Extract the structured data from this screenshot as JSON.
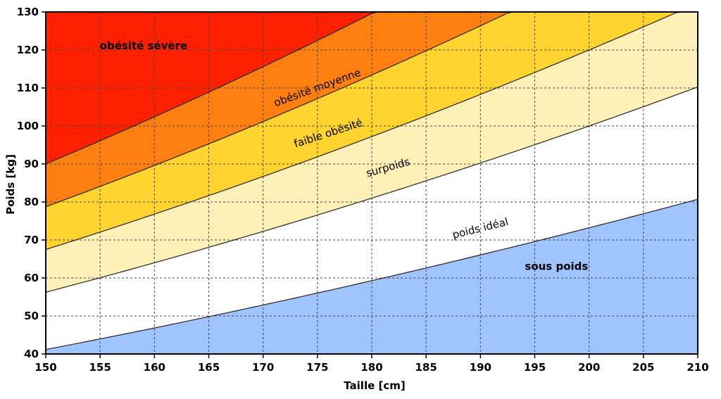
{
  "chart_data": {
    "type": "area",
    "title": "",
    "xlabel": "Taille [cm]",
    "ylabel": "Poids [kg]",
    "xlim": [
      150,
      210
    ],
    "ylim": [
      40,
      130
    ],
    "x_ticks": [
      150,
      155,
      160,
      165,
      170,
      175,
      180,
      185,
      190,
      195,
      200,
      205,
      210
    ],
    "y_ticks": [
      40,
      50,
      60,
      70,
      80,
      90,
      100,
      110,
      120,
      130
    ],
    "grid": true,
    "curve_type": "bmi",
    "boundaries_bmi": [
      18.3,
      25,
      30,
      35,
      40
    ],
    "zones": [
      {
        "name": "sous poids",
        "color": "#a0c4ff",
        "bmi_range": [
          0,
          18.3
        ],
        "label_at": [
          197,
          63
        ],
        "angle": 0,
        "bold": true
      },
      {
        "name": "poids idéal",
        "color": "#ffffff",
        "bmi_range": [
          18.3,
          25
        ],
        "label_at": [
          190,
          73
        ],
        "angle": -14,
        "bold": false
      },
      {
        "name": "surpoids",
        "color": "#fff0b8",
        "bmi_range": [
          25,
          30
        ],
        "label_at": [
          181.5,
          89
        ],
        "angle": -16,
        "bold": false
      },
      {
        "name": "faible obésité",
        "color": "#ffd330",
        "bmi_range": [
          30,
          35
        ],
        "label_at": [
          176,
          98
        ],
        "angle": -18,
        "bold": false
      },
      {
        "name": "obésité moyenne",
        "color": "#ff8010",
        "bmi_range": [
          35,
          40
        ],
        "label_at": [
          175,
          110
        ],
        "angle": -20,
        "bold": false
      },
      {
        "name": "obésité sévère",
        "color": "#ff2000",
        "bmi_range": [
          40,
          999
        ],
        "label_at": [
          159,
          121
        ],
        "angle": 0,
        "bold": true
      }
    ]
  }
}
